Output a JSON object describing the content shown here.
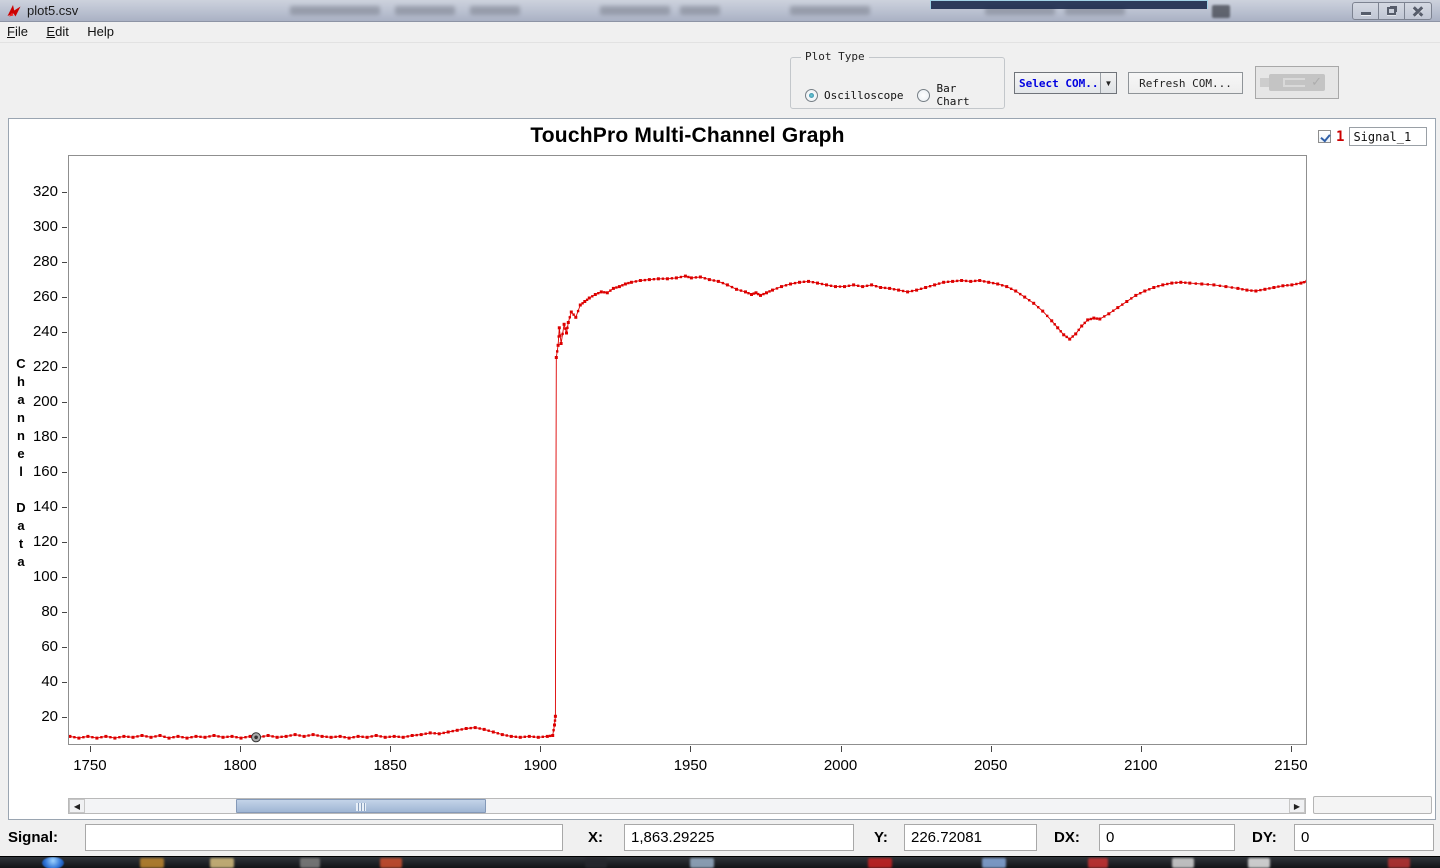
{
  "window": {
    "title": "plot5.csv"
  },
  "menu": {
    "items": [
      {
        "label": "File"
      },
      {
        "label": "Edit"
      },
      {
        "label": "Help"
      }
    ]
  },
  "toolbar": {
    "plot_type": {
      "label": "Plot Type",
      "options": [
        {
          "label": "Oscilloscope",
          "selected": true
        },
        {
          "label": "Bar Chart",
          "selected": false
        }
      ]
    },
    "com_select_label": "Select COM...",
    "refresh_button_label": "Refresh COM...",
    "connection_status": "Connected"
  },
  "legend": {
    "checked": true,
    "index": "1",
    "name": "Signal_1",
    "color": "#cc0000"
  },
  "chart_data": {
    "type": "line",
    "title": "TouchPro Multi-Channel Graph",
    "xlabel": "",
    "ylabel": "Channel Data",
    "series_name": "Signal_1",
    "line_color": "#dd0000",
    "marker": "square",
    "grid": false,
    "legend_position": "top-right",
    "xlim": [
      1742.7,
      2155.3
    ],
    "ylim": [
      4,
      330
    ],
    "xticks": [
      1750,
      1800,
      1850,
      1900,
      1950,
      2000,
      2050,
      2100,
      2150
    ],
    "yticks": [
      320,
      300,
      280,
      260,
      240,
      220,
      200,
      180,
      160,
      140,
      120,
      100,
      80,
      60,
      40,
      20
    ],
    "cursor_point": {
      "x": 1805,
      "y": 9
    },
    "points": [
      [
        1743,
        9.5
      ],
      [
        1746,
        8.5
      ],
      [
        1749,
        9.5
      ],
      [
        1752,
        8.5
      ],
      [
        1755,
        9.5
      ],
      [
        1758,
        8.5
      ],
      [
        1761,
        9.5
      ],
      [
        1764,
        9
      ],
      [
        1767,
        10
      ],
      [
        1770,
        9
      ],
      [
        1773,
        10
      ],
      [
        1776,
        8.5
      ],
      [
        1779,
        9.5
      ],
      [
        1782,
        8.5
      ],
      [
        1785,
        9.5
      ],
      [
        1788,
        9
      ],
      [
        1791,
        10
      ],
      [
        1794,
        9
      ],
      [
        1797,
        9.5
      ],
      [
        1800,
        8.5
      ],
      [
        1803,
        9.5
      ],
      [
        1806,
        9
      ],
      [
        1809,
        10
      ],
      [
        1812,
        9
      ],
      [
        1815,
        9.5
      ],
      [
        1818,
        10.5
      ],
      [
        1821,
        9.5
      ],
      [
        1824,
        10.5
      ],
      [
        1827,
        9.5
      ],
      [
        1830,
        9
      ],
      [
        1833,
        9.5
      ],
      [
        1836,
        8.5
      ],
      [
        1839,
        9.5
      ],
      [
        1842,
        9
      ],
      [
        1845,
        10
      ],
      [
        1848,
        9
      ],
      [
        1851,
        9.5
      ],
      [
        1854,
        9
      ],
      [
        1857,
        10
      ],
      [
        1860,
        10.5
      ],
      [
        1863,
        11.5
      ],
      [
        1866,
        11
      ],
      [
        1869,
        12
      ],
      [
        1872,
        13
      ],
      [
        1875,
        14
      ],
      [
        1878,
        14.5
      ],
      [
        1881,
        13.5
      ],
      [
        1884,
        12
      ],
      [
        1887,
        10.5
      ],
      [
        1890,
        9.5
      ],
      [
        1893,
        9
      ],
      [
        1896,
        9.5
      ],
      [
        1899,
        9
      ],
      [
        1902,
        9.5
      ],
      [
        1903.8,
        10
      ],
      [
        1904.4,
        16
      ],
      [
        1904.7,
        21
      ],
      [
        1905,
        226
      ],
      [
        1905.6,
        233
      ],
      [
        1906,
        243
      ],
      [
        1906.6,
        234
      ],
      [
        1907.6,
        245
      ],
      [
        1908.4,
        240
      ],
      [
        1909,
        246
      ],
      [
        1910,
        252
      ],
      [
        1911.5,
        249
      ],
      [
        1913,
        256
      ],
      [
        1914.5,
        258
      ],
      [
        1916,
        260
      ],
      [
        1918,
        262
      ],
      [
        1920,
        263.5
      ],
      [
        1922,
        263
      ],
      [
        1924,
        265.5
      ],
      [
        1926,
        266.5
      ],
      [
        1928,
        268
      ],
      [
        1930,
        269
      ],
      [
        1933,
        270
      ],
      [
        1936,
        270.5
      ],
      [
        1939,
        271
      ],
      [
        1942,
        271
      ],
      [
        1945,
        271.5
      ],
      [
        1948,
        272.5
      ],
      [
        1950,
        271.5
      ],
      [
        1953,
        272
      ],
      [
        1956,
        270.5
      ],
      [
        1959,
        269.5
      ],
      [
        1962,
        267.5
      ],
      [
        1965,
        265
      ],
      [
        1968,
        263.5
      ],
      [
        1970,
        262
      ],
      [
        1971.5,
        263
      ],
      [
        1973,
        261.5
      ],
      [
        1975,
        263
      ],
      [
        1977,
        264.5
      ],
      [
        1980,
        266.5
      ],
      [
        1983,
        268
      ],
      [
        1986,
        269
      ],
      [
        1989,
        269.5
      ],
      [
        1992,
        268.5
      ],
      [
        1995,
        267.5
      ],
      [
        1998,
        266.5
      ],
      [
        2001,
        266.5
      ],
      [
        2004,
        267.5
      ],
      [
        2007,
        266.5
      ],
      [
        2010,
        267.5
      ],
      [
        2013,
        266
      ],
      [
        2016,
        265.5
      ],
      [
        2019,
        264.5
      ],
      [
        2022,
        263.5
      ],
      [
        2025,
        264.5
      ],
      [
        2028,
        266
      ],
      [
        2031,
        267.5
      ],
      [
        2034,
        269
      ],
      [
        2037,
        269.5
      ],
      [
        2040,
        270
      ],
      [
        2043,
        269.5
      ],
      [
        2046,
        270
      ],
      [
        2049,
        269
      ],
      [
        2052,
        268
      ],
      [
        2055,
        266.5
      ],
      [
        2058,
        264
      ],
      [
        2061,
        260.5
      ],
      [
        2064,
        257
      ],
      [
        2067,
        252.5
      ],
      [
        2070,
        247
      ],
      [
        2072,
        243
      ],
      [
        2074,
        239
      ],
      [
        2076,
        236.5
      ],
      [
        2078,
        239.5
      ],
      [
        2080,
        244
      ],
      [
        2082,
        247.5
      ],
      [
        2084,
        248.5
      ],
      [
        2086,
        248
      ],
      [
        2089,
        251
      ],
      [
        2092,
        254.5
      ],
      [
        2095,
        258
      ],
      [
        2098,
        261.5
      ],
      [
        2101,
        264
      ],
      [
        2104,
        266
      ],
      [
        2107,
        267.5
      ],
      [
        2110,
        268.5
      ],
      [
        2113,
        269
      ],
      [
        2116,
        268.5
      ],
      [
        2120,
        268
      ],
      [
        2124,
        267.5
      ],
      [
        2128,
        266.5
      ],
      [
        2132,
        265.5
      ],
      [
        2135,
        264.5
      ],
      [
        2138,
        264
      ],
      [
        2141,
        265
      ],
      [
        2144,
        266
      ],
      [
        2147,
        267
      ],
      [
        2150,
        267.5
      ],
      [
        2153,
        268.5
      ],
      [
        2155,
        269.5
      ]
    ]
  },
  "statusbar": {
    "signal_label": "Signal:",
    "signal_value": "",
    "x_label": "X:",
    "x_value": "1,863.29225",
    "y_label": "Y:",
    "y_value": "226.72081",
    "dx_label": "DX:",
    "dx_value": "0",
    "dy_label": "DY:",
    "dy_value": "0"
  }
}
